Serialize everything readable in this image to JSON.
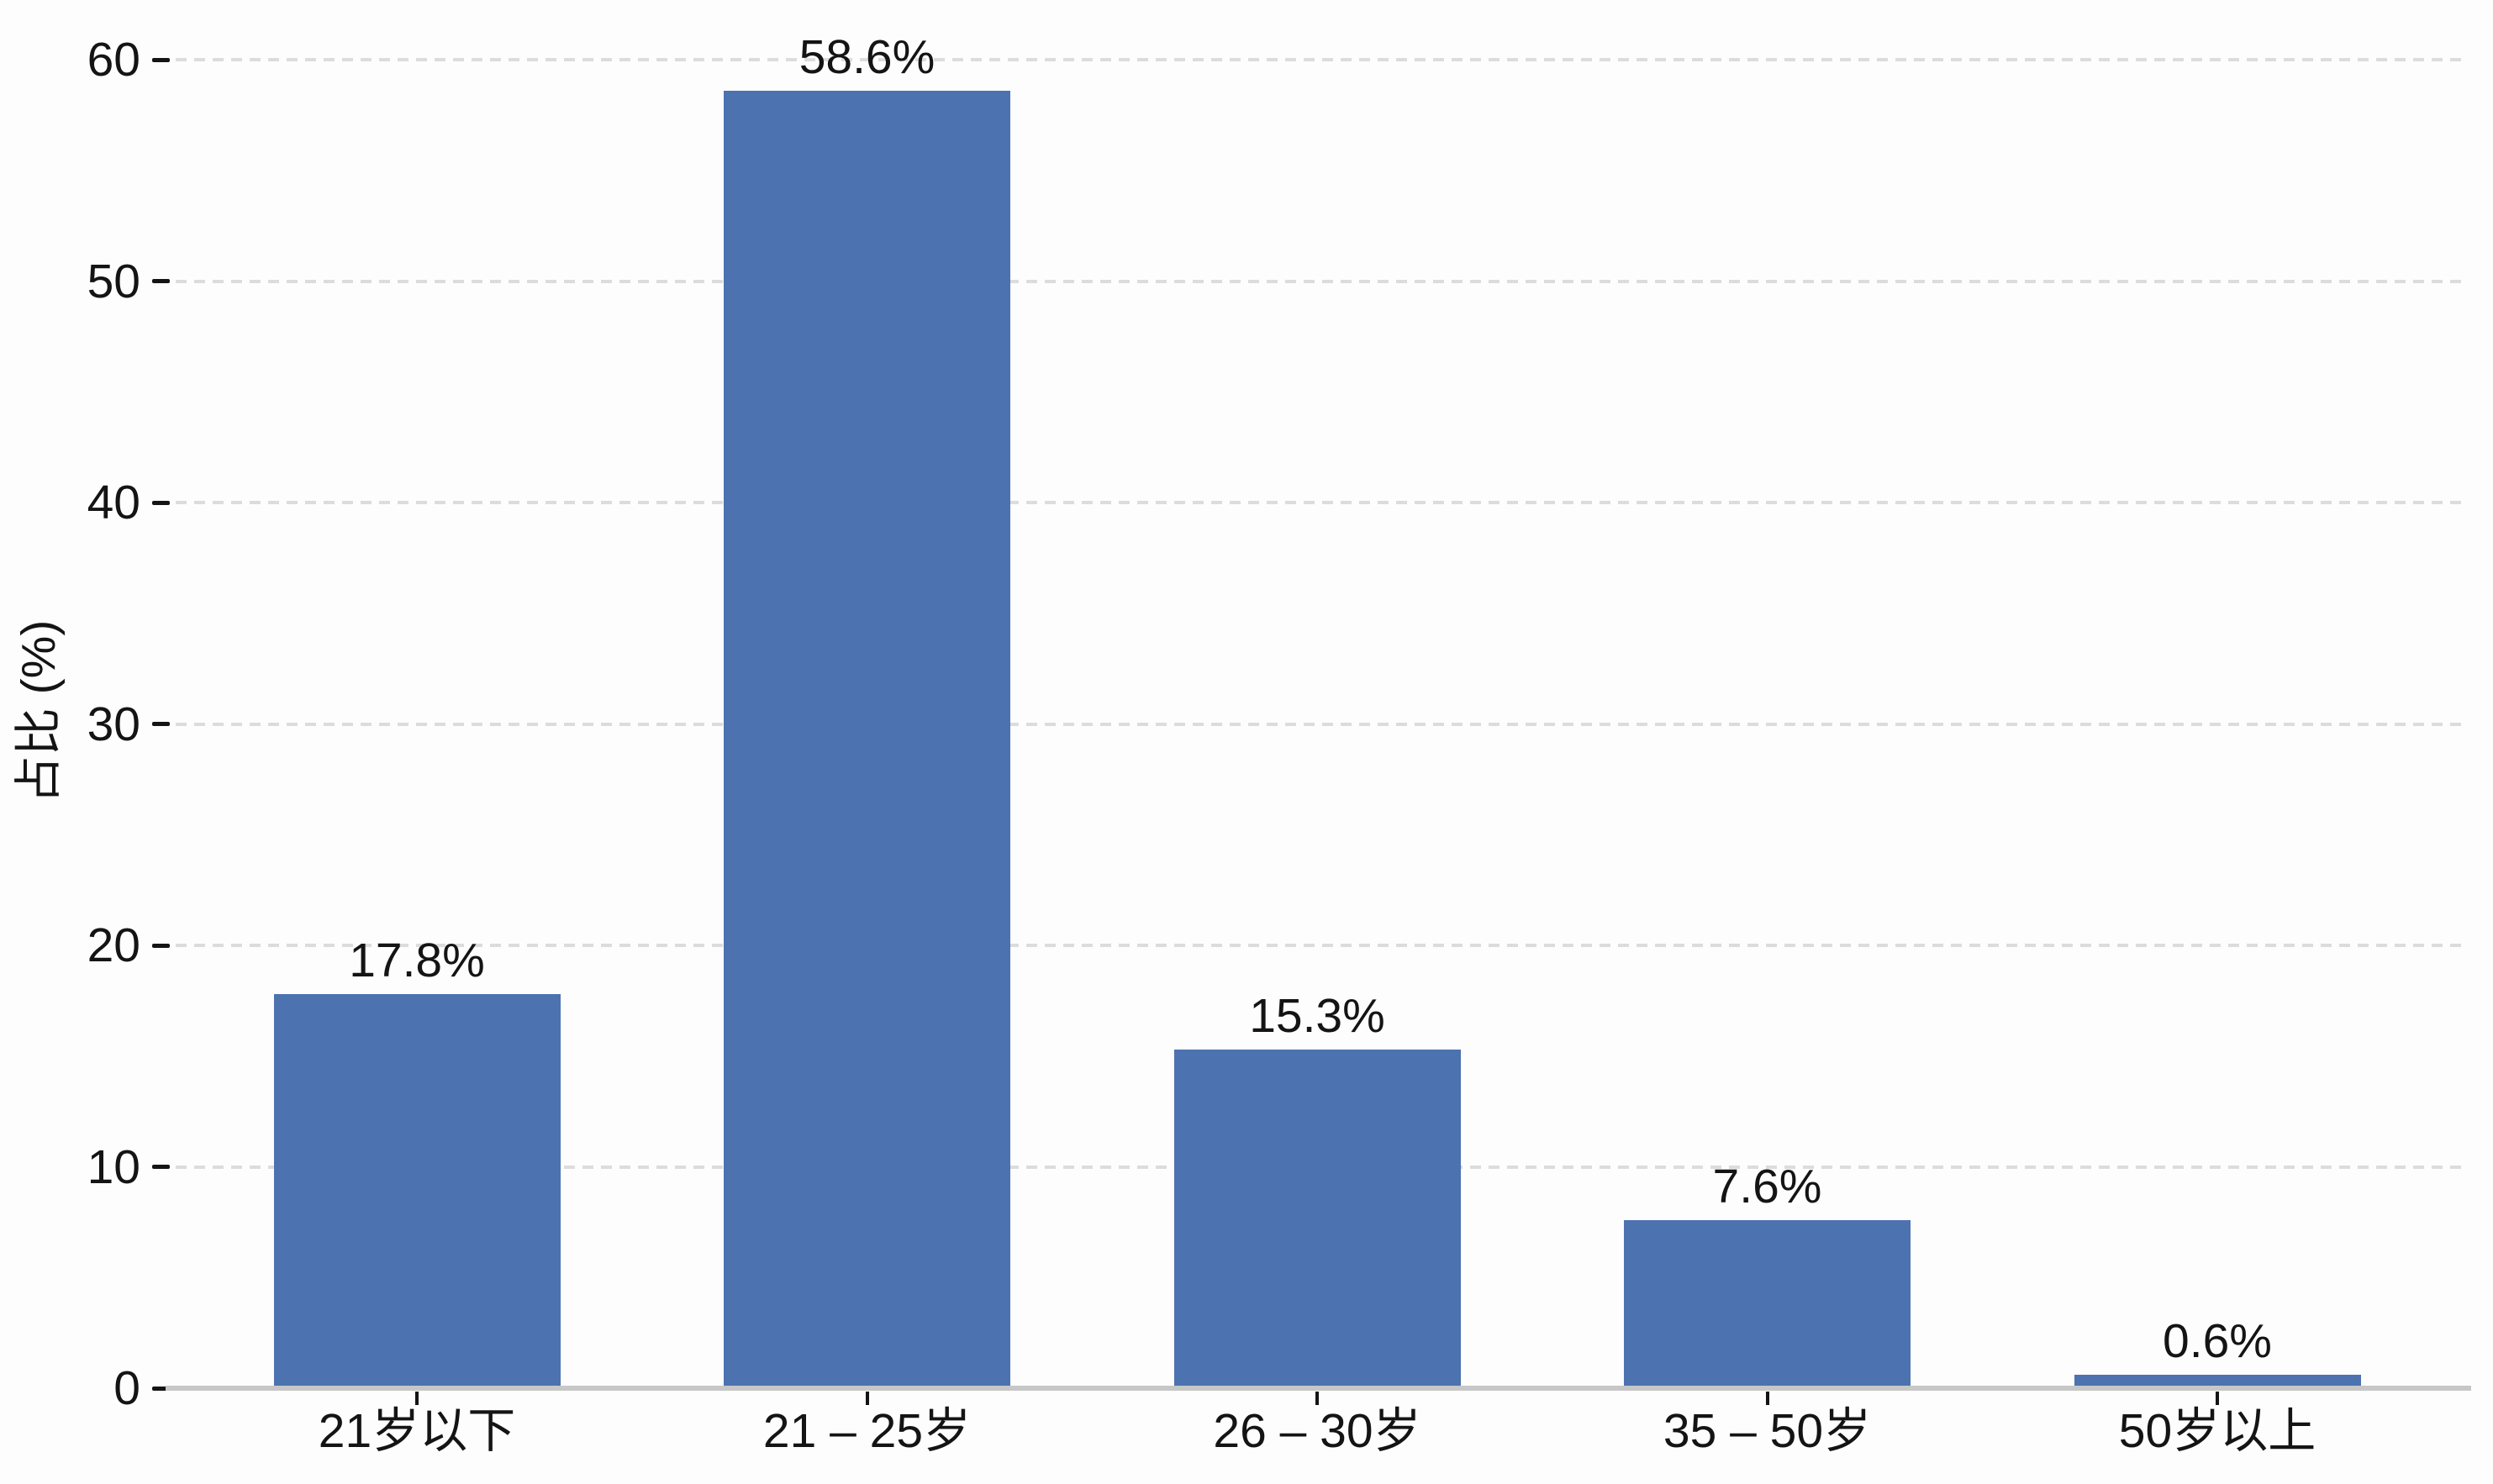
{
  "chart_data": {
    "type": "bar",
    "title": "",
    "xlabel": "",
    "ylabel": "占比 (%)",
    "categories": [
      "21岁以下",
      "21 – 25岁",
      "26 – 30岁",
      "35 – 50岁",
      "50岁以上"
    ],
    "values": [
      17.8,
      58.6,
      15.3,
      7.6,
      0.6
    ],
    "bar_labels": [
      "17.8%",
      "58.6%",
      "15.3%",
      "7.6%",
      "0.6%"
    ],
    "ylim": [
      0,
      60
    ],
    "yticks": [
      0,
      10,
      20,
      30,
      40,
      50,
      60
    ],
    "ytick_labels": [
      "0",
      "10",
      "20",
      "30",
      "40",
      "50",
      "60"
    ],
    "grid": "horizontal dashed",
    "legend": "none",
    "bar_color": "#4c72b0",
    "gridline_color": "#dcdcdc",
    "axis_line_color": "#c7c7c7",
    "text_color": "#141414",
    "background_color": "#fdfdfd"
  }
}
